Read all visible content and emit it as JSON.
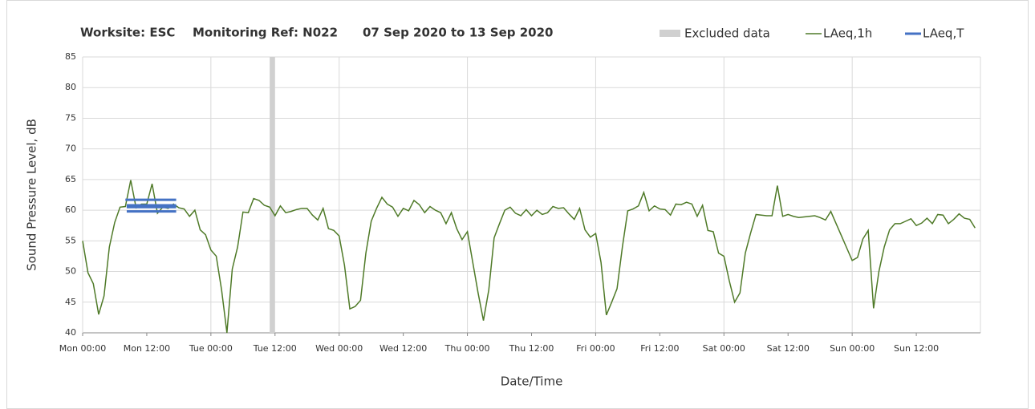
{
  "chart_data": {
    "type": "line",
    "title_parts": [
      "Worksite: ESC",
      "Monitoring Ref: N022",
      "07 Sep 2020 to 13 Sep 2020"
    ],
    "ylabel": "Sound Pressure Level, dB",
    "xlabel": "Date/Time",
    "xlim": [
      0,
      168
    ],
    "xticks": [
      {
        "value": 0,
        "label": "Mon 00:00"
      },
      {
        "value": 12,
        "label": "Mon 12:00"
      },
      {
        "value": 24,
        "label": "Tue 00:00"
      },
      {
        "value": 36,
        "label": "Tue 12:00"
      },
      {
        "value": 48,
        "label": "Wed 00:00"
      },
      {
        "value": 60,
        "label": "Wed 12:00"
      },
      {
        "value": 72,
        "label": "Thu 00:00"
      },
      {
        "value": 84,
        "label": "Thu 12:00"
      },
      {
        "value": 96,
        "label": "Fri 00:00"
      },
      {
        "value": 108,
        "label": "Fri 12:00"
      },
      {
        "value": 120,
        "label": "Sat 00:00"
      },
      {
        "value": 132,
        "label": "Sat 12:00"
      },
      {
        "value": 144,
        "label": "Sun 00:00"
      },
      {
        "value": 156,
        "label": "Sun 12:00"
      }
    ],
    "ylim": [
      40,
      85
    ],
    "yticks": [
      40,
      45,
      50,
      55,
      60,
      65,
      70,
      75,
      80,
      85
    ],
    "grid": true,
    "excluded": {
      "name": "Excluded data",
      "color": "#d0d0d0",
      "range": [
        35,
        36
      ]
    },
    "series": [
      {
        "name": "LAeq,1h",
        "color": "#4f7a28",
        "x": [
          0,
          1,
          2,
          3,
          4,
          5,
          6,
          7,
          8,
          9,
          10,
          11,
          12,
          13,
          14,
          15,
          16,
          17,
          18,
          19,
          20,
          21,
          22,
          23,
          24,
          25,
          26,
          27,
          28,
          29,
          30,
          31,
          32,
          33,
          34,
          35,
          36,
          37,
          38,
          39,
          40,
          41,
          42,
          43,
          44,
          45,
          46,
          47,
          48,
          49,
          50,
          51,
          52,
          53,
          54,
          55,
          56,
          57,
          58,
          59,
          60,
          61,
          62,
          63,
          64,
          65,
          66,
          67,
          68,
          69,
          70,
          71,
          72,
          73,
          74,
          75,
          76,
          77,
          78,
          79,
          80,
          81,
          82,
          83,
          84,
          85,
          86,
          87,
          88,
          89,
          90,
          91,
          92,
          93,
          94,
          95,
          96,
          97,
          98,
          99,
          100,
          101,
          102,
          103,
          104,
          105,
          106,
          107,
          108,
          109,
          110,
          111,
          112,
          113,
          114,
          115,
          116,
          117,
          118,
          119,
          120,
          121,
          122,
          123,
          124,
          125,
          126,
          127,
          128,
          129,
          130,
          131,
          132,
          133,
          134,
          135,
          136,
          137,
          138,
          139,
          140,
          141,
          142,
          143,
          144,
          145,
          146,
          147,
          148,
          149,
          150,
          151,
          152,
          153,
          154,
          155,
          156,
          157,
          158,
          159,
          160,
          161,
          162,
          163,
          164,
          165,
          166,
          167
        ],
        "values": [
          55,
          49.8,
          48,
          43,
          46,
          54,
          58,
          60.5,
          60.6,
          64.9,
          60.4,
          61,
          61,
          64.3,
          59.5,
          60.5,
          60.3,
          61,
          60.4,
          60.2,
          59,
          60,
          56.8,
          56,
          53.5,
          52.5,
          47,
          40,
          50.4,
          54,
          59.7,
          59.6,
          61.9,
          61.6,
          60.8,
          60.5,
          59.1,
          60.7,
          59.6,
          59.8,
          60.1,
          60.3,
          60.3,
          59.2,
          58.4,
          60.3,
          57,
          56.7,
          55.8,
          51,
          43.9,
          44.3,
          45.3,
          53,
          58.2,
          60.3,
          62.1,
          61,
          60.5,
          59,
          60.3,
          59.9,
          61.6,
          60.9,
          59.6,
          60.6,
          60,
          59.6,
          57.8,
          59.6,
          57,
          55.2,
          56.5,
          51.5,
          46.5,
          42,
          47,
          55.5,
          57.8,
          60,
          60.5,
          59.5,
          59.1,
          60.1,
          59.1,
          60,
          59.3,
          59.6,
          60.6,
          60.3,
          60.4,
          59.4,
          58.5,
          60.3,
          56.8,
          55.6,
          56.2,
          51.5,
          42.9,
          45,
          47.2,
          54,
          59.9,
          60.2,
          60.7,
          62.9,
          59.9,
          60.7,
          60.2,
          60.1,
          59.2,
          61,
          60.9,
          61.3,
          61,
          59,
          60.8,
          56.7,
          56.5,
          53,
          52.5,
          48.5,
          45,
          46.5,
          53,
          56.3,
          59.3,
          59.2,
          59.1,
          59.1,
          64,
          59,
          59.3,
          59,
          58.8,
          58.9,
          59,
          59.1,
          58.8,
          58.4,
          59.8,
          57.8,
          55.8,
          53.8,
          51.8,
          52.3,
          55.3,
          56.7,
          44,
          50,
          54,
          56.8,
          57.8,
          57.8,
          58.2,
          58.6,
          57.5,
          57.9,
          58.7,
          57.8,
          59.3,
          59.2,
          57.8,
          58.5,
          59.4,
          58.7,
          58.5,
          57.1
        ]
      },
      {
        "name": "LAeq,T",
        "color": "#4472c4",
        "segments": [
          {
            "x": [
              8,
              17.5
            ],
            "value": 61.7
          },
          {
            "x": [
              8.25,
              17.5
            ],
            "value": 60.5
          },
          {
            "x": [
              8.25,
              17.5
            ],
            "value": 60.6
          },
          {
            "x": [
              8.25,
              17.5
            ],
            "value": 59.8
          },
          {
            "x": [
              8.25,
              17.5
            ],
            "value": 60.8
          },
          {
            "x": [
              8.25,
              12.5
            ],
            "value": 60.6
          }
        ]
      }
    ]
  }
}
